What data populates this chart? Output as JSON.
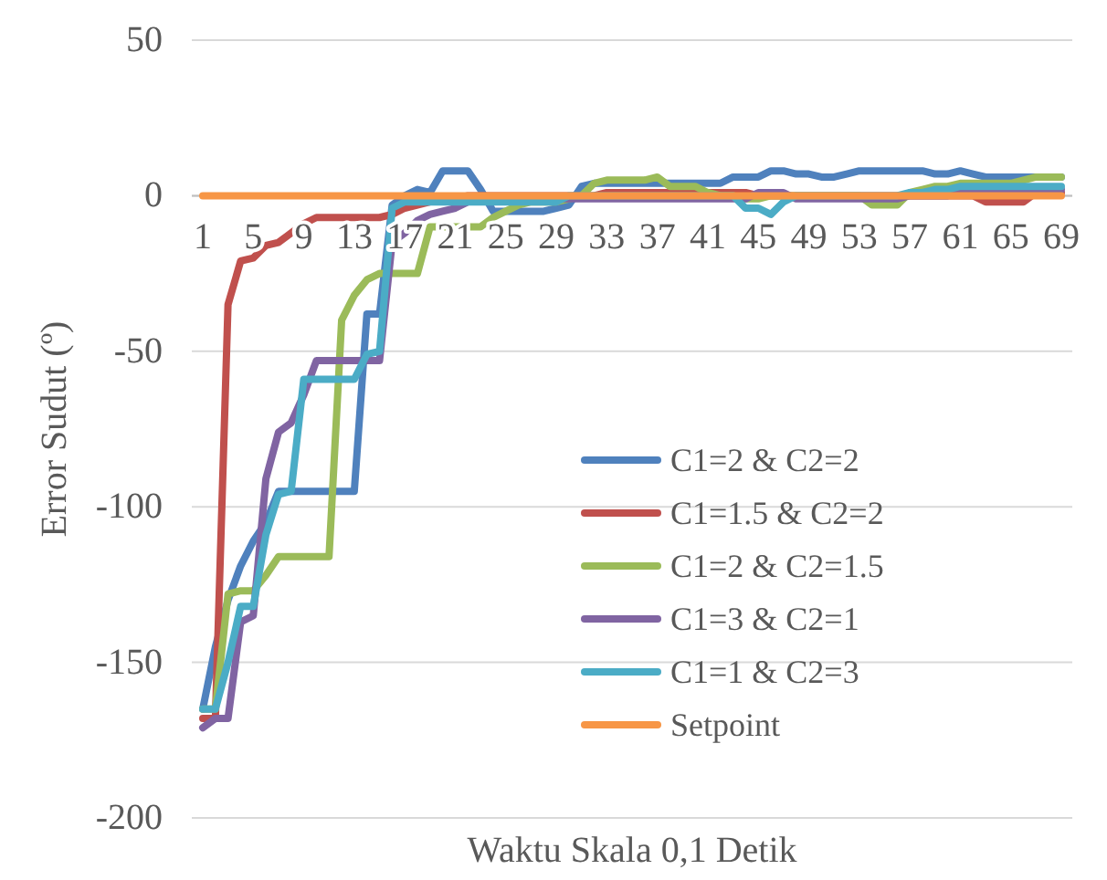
{
  "chart_data": {
    "type": "line",
    "xlabel": "Waktu Skala 0,1 Detik",
    "ylabel": "Error Sudut (º)",
    "categories": [
      "1",
      null,
      null,
      null,
      "5",
      null,
      null,
      null,
      "9",
      null,
      null,
      null,
      "13",
      null,
      null,
      null,
      "17",
      null,
      null,
      null,
      "21",
      null,
      null,
      null,
      "25",
      null,
      null,
      null,
      "29",
      null,
      null,
      null,
      "33",
      null,
      null,
      null,
      "37",
      null,
      null,
      null,
      "41",
      null,
      null,
      null,
      "45",
      null,
      null,
      null,
      "49",
      null,
      null,
      null,
      "53",
      null,
      null,
      null,
      "57",
      null,
      null,
      null,
      "61",
      null,
      null,
      null,
      "65",
      null,
      null,
      null,
      "69"
    ],
    "ylim": [
      -200,
      50
    ],
    "yticks": [
      -200,
      -150,
      -100,
      -50,
      0,
      50
    ],
    "grid": "y",
    "legend": "bottom right",
    "line_style": "solid",
    "series": [
      {
        "name": "C1=2 & C2=2",
        "color": "#4f81bd",
        "values": [
          -165,
          -145,
          -130,
          -119,
          -111,
          -105,
          -95,
          -95,
          -95,
          -95,
          -95,
          -95,
          -95,
          -38,
          -38,
          -3,
          0,
          2,
          1,
          8,
          8,
          8,
          2,
          -5,
          -5,
          -5,
          -5,
          -5,
          -4,
          -3,
          3,
          4,
          4,
          4,
          4,
          4,
          4,
          4,
          4,
          4,
          4,
          4,
          6,
          6,
          6,
          8,
          8,
          7,
          7,
          6,
          6,
          7,
          8,
          8,
          8,
          8,
          8,
          8,
          7,
          7,
          8,
          7,
          6,
          6,
          6,
          6,
          6,
          6,
          6
        ]
      },
      {
        "name": "C1=1.5 & C2=2",
        "color": "#c0504d",
        "values": [
          -168,
          -168,
          -35,
          -21,
          -20,
          -16,
          -15,
          -12,
          -9,
          -7,
          -7,
          -7,
          -7,
          -7,
          -7,
          -6,
          -4,
          -3,
          -2,
          -1,
          -1,
          0,
          0,
          0,
          0,
          0,
          0,
          0,
          0,
          0,
          0,
          0,
          1,
          1,
          1,
          1,
          1,
          1,
          1,
          1,
          1,
          1,
          1,
          1,
          0,
          0,
          0,
          0,
          0,
          0,
          0,
          0,
          0,
          0,
          0,
          0,
          0,
          0,
          0,
          0,
          0,
          0,
          -2,
          -2,
          -2,
          -2,
          1,
          1,
          1
        ]
      },
      {
        "name": "C1=2 & C2=1.5",
        "color": "#9bbb59",
        "values": [
          -165,
          -165,
          -128,
          -127,
          -127,
          -122,
          -116,
          -116,
          -116,
          -116,
          -116,
          -40,
          -32,
          -27,
          -25,
          -25,
          -25,
          -25,
          -10,
          -10,
          -10,
          -10,
          -10,
          -7,
          -5,
          -3,
          -2,
          -2,
          -2,
          -1,
          0,
          4,
          5,
          5,
          5,
          5,
          6,
          3,
          3,
          3,
          1,
          0,
          0,
          -1,
          -1,
          0,
          0,
          0,
          0,
          0,
          0,
          0,
          0,
          -3,
          -3,
          -3,
          1,
          2,
          3,
          3,
          4,
          4,
          4,
          4,
          4,
          5,
          6,
          6,
          6
        ]
      },
      {
        "name": "C1=3 & C2=1",
        "color": "#8064a2",
        "values": [
          -171,
          -168,
          -168,
          -137,
          -135,
          -91,
          -76,
          -73,
          -64,
          -53,
          -53,
          -53,
          -53,
          -53,
          -53,
          -15,
          -12,
          -8,
          -6,
          -5,
          -4,
          -2,
          -1,
          -1,
          -1,
          -1,
          -1,
          -1,
          -1,
          -1,
          -1,
          -1,
          -1,
          -1,
          -1,
          -1,
          -1,
          -1,
          -1,
          -1,
          -1,
          -1,
          -1,
          -1,
          1,
          1,
          1,
          -1,
          -1,
          -1,
          -1,
          -1,
          -1,
          -1,
          -1,
          -1,
          0,
          0,
          0,
          0,
          2,
          2,
          2,
          2,
          2,
          2,
          2,
          2,
          2
        ]
      },
      {
        "name": "C1=1 & C2=3",
        "color": "#4bacc6",
        "values": [
          -165,
          -165,
          -150,
          -132,
          -132,
          -109,
          -96,
          -95,
          -59,
          -59,
          -59,
          -59,
          -59,
          -51,
          -50,
          -4,
          -2,
          -2,
          -2,
          -2,
          -2,
          -2,
          -2,
          -2,
          -2,
          -2,
          -2,
          -2,
          -2,
          0,
          0,
          0,
          0,
          0,
          0,
          0,
          0,
          0,
          0,
          0,
          0,
          0,
          0,
          -4,
          -4,
          -6,
          -2,
          0,
          0,
          0,
          0,
          0,
          0,
          0,
          0,
          0,
          1,
          1,
          2,
          2,
          3,
          3,
          3,
          3,
          3,
          3,
          3,
          3,
          3
        ]
      },
      {
        "name": "Setpoint",
        "color": "#f79646",
        "values": [
          0,
          0,
          0,
          0,
          0,
          0,
          0,
          0,
          0,
          0,
          0,
          0,
          0,
          0,
          0,
          0,
          0,
          0,
          0,
          0,
          0,
          0,
          0,
          0,
          0,
          0,
          0,
          0,
          0,
          0,
          0,
          0,
          0,
          0,
          0,
          0,
          0,
          0,
          0,
          0,
          0,
          0,
          0,
          0,
          0,
          0,
          0,
          0,
          0,
          0,
          0,
          0,
          0,
          0,
          0,
          0,
          0,
          0,
          0,
          0,
          0,
          0,
          0,
          0,
          0,
          0,
          0,
          0,
          0
        ]
      }
    ]
  }
}
